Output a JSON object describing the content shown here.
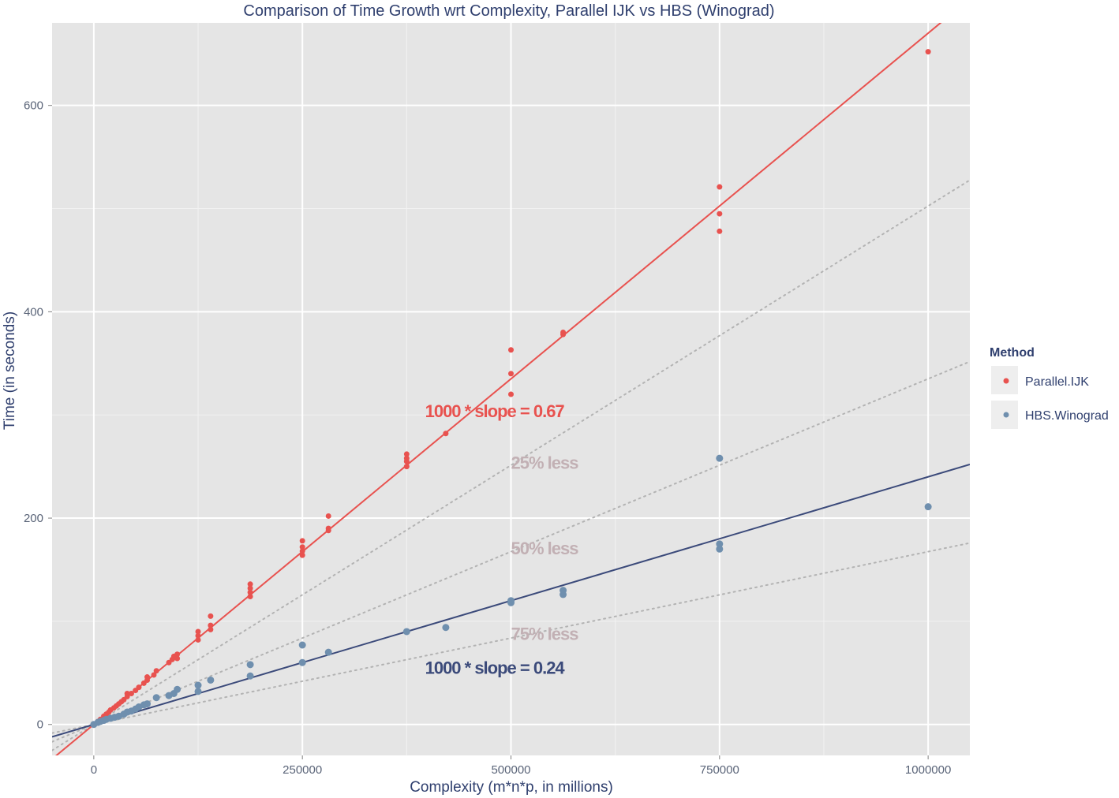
{
  "chart_data": {
    "type": "scatter",
    "title": "Comparison of Time Growth wrt Complexity, Parallel IJK vs HBS (Winograd)",
    "xlabel": "Complexity (m*n*p, in millions)",
    "ylabel": "Time (in seconds)",
    "xlim": [
      -50000,
      1050000
    ],
    "ylim": [
      -30,
      680
    ],
    "x_ticks": [
      0,
      250000,
      500000,
      750000,
      1000000
    ],
    "x_tick_labels": [
      "0",
      "250000",
      "500000",
      "750000",
      "1000000"
    ],
    "y_ticks": [
      0,
      200,
      400,
      600
    ],
    "y_tick_labels": [
      "0",
      "200",
      "400",
      "600"
    ],
    "grid": true,
    "legend": {
      "title": "Method",
      "placement": "right",
      "entries": [
        "Parallel.IJK",
        "HBS.Winograd"
      ]
    },
    "series": [
      {
        "name": "Parallel.IJK",
        "color": "#e8524f",
        "fit_slope_per_1000": 0.67,
        "points": [
          [
            0,
            0
          ],
          [
            5000,
            3
          ],
          [
            8000,
            5
          ],
          [
            12000,
            8
          ],
          [
            15000,
            10
          ],
          [
            18000,
            12
          ],
          [
            20000,
            14
          ],
          [
            24000,
            16
          ],
          [
            27000,
            18
          ],
          [
            30000,
            20
          ],
          [
            33000,
            22
          ],
          [
            36000,
            24
          ],
          [
            40000,
            27
          ],
          [
            40000,
            30
          ],
          [
            45000,
            30
          ],
          [
            50000,
            33
          ],
          [
            54000,
            36
          ],
          [
            60000,
            40
          ],
          [
            64000,
            43
          ],
          [
            64000,
            46
          ],
          [
            72000,
            48
          ],
          [
            75000,
            52
          ],
          [
            90000,
            60
          ],
          [
            94000,
            63
          ],
          [
            96000,
            66
          ],
          [
            100000,
            68
          ],
          [
            100000,
            64
          ],
          [
            125000,
            82
          ],
          [
            125000,
            86
          ],
          [
            125000,
            90
          ],
          [
            140000,
            92
          ],
          [
            140000,
            96
          ],
          [
            140000,
            105
          ],
          [
            187500,
            124
          ],
          [
            187500,
            128
          ],
          [
            187500,
            132
          ],
          [
            187500,
            136
          ],
          [
            250000,
            164
          ],
          [
            250000,
            168
          ],
          [
            250000,
            172
          ],
          [
            250000,
            178
          ],
          [
            281250,
            188
          ],
          [
            281250,
            190
          ],
          [
            281250,
            202
          ],
          [
            375000,
            250
          ],
          [
            375000,
            255
          ],
          [
            375000,
            258
          ],
          [
            375000,
            262
          ],
          [
            421875,
            282
          ],
          [
            500000,
            320
          ],
          [
            500000,
            340
          ],
          [
            500000,
            363
          ],
          [
            562500,
            378
          ],
          [
            562500,
            380
          ],
          [
            750000,
            478
          ],
          [
            750000,
            495
          ],
          [
            750000,
            521
          ],
          [
            1000000,
            652
          ]
        ]
      },
      {
        "name": "HBS.Winograd",
        "color": "#6f8fae",
        "fit_slope_per_1000": 0.24,
        "points": [
          [
            0,
            0
          ],
          [
            5000,
            2
          ],
          [
            8000,
            3
          ],
          [
            12000,
            4
          ],
          [
            15000,
            5
          ],
          [
            20000,
            6
          ],
          [
            25000,
            7
          ],
          [
            30000,
            8
          ],
          [
            36000,
            10
          ],
          [
            40000,
            12
          ],
          [
            45000,
            13
          ],
          [
            50000,
            15
          ],
          [
            54000,
            17
          ],
          [
            60000,
            19
          ],
          [
            64000,
            20
          ],
          [
            75000,
            26
          ],
          [
            90000,
            28
          ],
          [
            96000,
            30
          ],
          [
            100000,
            34
          ],
          [
            125000,
            32
          ],
          [
            125000,
            38
          ],
          [
            140000,
            43
          ],
          [
            187500,
            47
          ],
          [
            187500,
            58
          ],
          [
            250000,
            60
          ],
          [
            250000,
            77
          ],
          [
            281250,
            70
          ],
          [
            375000,
            90
          ],
          [
            421875,
            94
          ],
          [
            500000,
            118
          ],
          [
            500000,
            120
          ],
          [
            562500,
            126
          ],
          [
            562500,
            130
          ],
          [
            750000,
            170
          ],
          [
            750000,
            175
          ],
          [
            750000,
            258
          ],
          [
            1000000,
            211
          ]
        ]
      }
    ],
    "fit_lines": [
      {
        "series": "Parallel.IJK",
        "slope": 0.00067,
        "intercept": 0,
        "color": "#e8524f"
      },
      {
        "series": "HBS.Winograd",
        "slope": 0.00024,
        "intercept": 0,
        "color": "#3b4a7a"
      }
    ],
    "reference_lines": [
      {
        "label": "25% less",
        "slope": 0.0005025
      },
      {
        "label": "50% less",
        "slope": 0.000335
      },
      {
        "label": "75% less",
        "slope": 0.0001675
      }
    ],
    "reference_line_color": "#b3b3b3",
    "annotations": [
      {
        "text": "1000 * slope = 0.67",
        "x": 397000,
        "y": 298,
        "color": "#e8524f"
      },
      {
        "text": "25% less",
        "x": 500000,
        "y": 248,
        "color": "#c2b0b4"
      },
      {
        "text": "50% less",
        "x": 500000,
        "y": 165,
        "color": "#c2b0b4"
      },
      {
        "text": "75% less",
        "x": 500000,
        "y": 82,
        "color": "#c2b0b4"
      },
      {
        "text": "1000 * slope = 0.24",
        "x": 397000,
        "y": 49,
        "color": "#3b4a7a"
      }
    ]
  }
}
